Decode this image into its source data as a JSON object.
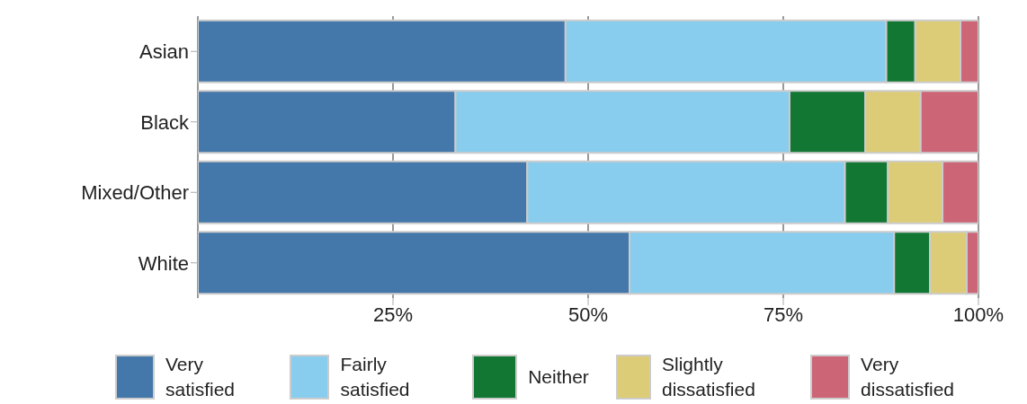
{
  "chart_data": {
    "type": "bar",
    "orientation": "horizontal",
    "stacked": true,
    "categories": [
      "Asian",
      "Black",
      "Mixed/Other",
      "White"
    ],
    "series": [
      {
        "name": "Very satisfied",
        "color": "#4477aa",
        "values": [
          47.1,
          33.0,
          42.2,
          55.3
        ]
      },
      {
        "name": "Fairly satisfied",
        "color": "#88ccee",
        "values": [
          41.1,
          42.8,
          40.7,
          33.9
        ]
      },
      {
        "name": "Neither",
        "color": "#117733",
        "values": [
          3.7,
          9.7,
          5.5,
          4.6
        ]
      },
      {
        "name": "Slightly dissatisfied",
        "color": "#ddcc77",
        "values": [
          5.8,
          7.1,
          7.0,
          4.7
        ]
      },
      {
        "name": "Very dissatisfied",
        "color": "#cc6677",
        "values": [
          2.3,
          7.4,
          4.6,
          1.5
        ]
      }
    ],
    "xlim": [
      0,
      100
    ],
    "xticks": [
      {
        "value": 25,
        "label": "25%"
      },
      {
        "value": 50,
        "label": "50%"
      },
      {
        "value": 75,
        "label": "75%"
      },
      {
        "value": 100,
        "label": "100%"
      }
    ],
    "grid": "x",
    "legend": "bottom"
  }
}
